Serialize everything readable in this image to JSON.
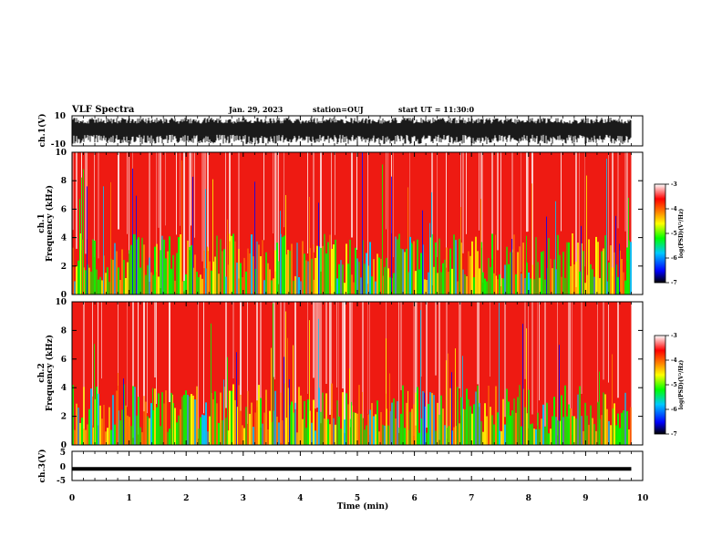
{
  "header": {
    "title": "VLF Spectra",
    "date": "Jan. 29, 2023",
    "station": "station=OUJ",
    "start": "start UT =   11:30:0"
  },
  "chart_data": [
    {
      "type": "line",
      "panel": "ch1-waveform",
      "ylabel": "ch.1(V)",
      "ylim": [
        -10,
        10
      ],
      "yticks": [
        "10",
        "-10"
      ],
      "description_values": "dense waveform spanning roughly -9 to +9 V over 0-9.8 min"
    },
    {
      "type": "heatmap",
      "panel": "ch1-spectrogram",
      "ylabel": "ch.1\nFrequency (kHz)",
      "ylim": [
        0,
        10
      ],
      "yticks": [
        "0",
        "2",
        "4",
        "6",
        "8",
        "10"
      ],
      "colorbar": {
        "label": "log(PSD)(V²/Hz)",
        "range": [
          -7,
          -3
        ],
        "ticks": [
          "-3",
          "-4",
          "-5",
          "-6",
          "-7"
        ]
      }
    },
    {
      "type": "heatmap",
      "panel": "ch2-spectrogram",
      "ylabel": "ch.2\nFrequency (kHz)",
      "ylim": [
        0,
        10
      ],
      "yticks": [
        "0",
        "2",
        "4",
        "6",
        "8",
        "10"
      ],
      "colorbar": {
        "label": "log(PSD)(V²/Hz)",
        "range": [
          -7,
          -3
        ],
        "ticks": [
          "-3",
          "-4",
          "-5",
          "-6",
          "-7"
        ]
      }
    },
    {
      "type": "line",
      "panel": "ch3-waveform",
      "ylabel": "ch.3(V)",
      "ylim": [
        -5,
        5
      ],
      "yticks": [
        "5",
        "0",
        "-5"
      ],
      "x": [
        0,
        9.8
      ],
      "y": [
        -1,
        -1
      ]
    }
  ],
  "xaxis": {
    "label": "Time (min)",
    "range": [
      0,
      10
    ],
    "ticks": [
      "0",
      "1",
      "2",
      "3",
      "4",
      "5",
      "6",
      "7",
      "8",
      "9",
      "10"
    ],
    "data_end": 9.8
  },
  "colors": {
    "background_red": "#ee1a12",
    "scale": [
      "#000000",
      "#0000ff",
      "#00c8ff",
      "#00ff00",
      "#ffff00",
      "#ff8000",
      "#ff0000",
      "#ffffff"
    ]
  }
}
